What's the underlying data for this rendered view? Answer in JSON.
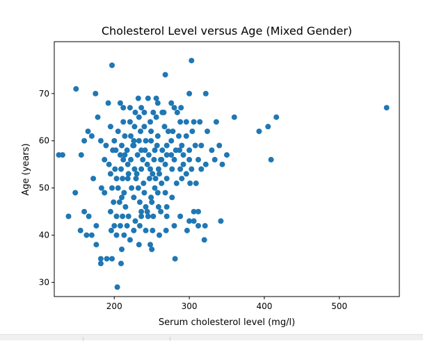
{
  "chart_data": {
    "type": "scatter",
    "title": "Cholesterol Level versus Age (Mixed Gender)",
    "xlabel": "Serum cholesterol level (mg/l)",
    "ylabel": "Age (years)",
    "xlim": [
      120,
      580
    ],
    "ylim": [
      27,
      81
    ],
    "xticks": [
      200,
      300,
      400,
      500
    ],
    "yticks": [
      30,
      40,
      50,
      60,
      70
    ],
    "grid": false,
    "marker_color": "#1f77b4",
    "series": [
      {
        "points": [
          [
            126,
            57
          ],
          [
            131,
            57
          ],
          [
            149,
            71
          ],
          [
            197,
            76
          ],
          [
            303,
            77
          ],
          [
            268,
            74
          ],
          [
            175,
            70
          ],
          [
            245,
            69
          ],
          [
            256,
            69
          ],
          [
            300,
            70
          ],
          [
            322,
            70
          ],
          [
            192,
            68
          ],
          [
            208,
            68
          ],
          [
            212,
            67
          ],
          [
            221,
            67
          ],
          [
            228,
            66
          ],
          [
            236,
            67
          ],
          [
            252,
            66
          ],
          [
            258,
            68
          ],
          [
            276,
            68
          ],
          [
            280,
            67
          ],
          [
            289,
            67
          ],
          [
            232,
            69
          ],
          [
            212,
            64
          ],
          [
            221,
            64
          ],
          [
            233,
            65
          ],
          [
            248,
            64
          ],
          [
            256,
            65
          ],
          [
            266,
            66
          ],
          [
            288,
            64
          ],
          [
            296,
            64
          ],
          [
            304,
            62
          ],
          [
            314,
            64
          ],
          [
            336,
            64
          ],
          [
            360,
            65
          ],
          [
            416,
            65
          ],
          [
            563,
            67
          ],
          [
            178,
            65
          ],
          [
            165,
            62
          ],
          [
            170,
            61
          ],
          [
            195,
            63
          ],
          [
            205,
            62
          ],
          [
            214,
            61
          ],
          [
            227,
            63
          ],
          [
            235,
            62
          ],
          [
            240,
            63
          ],
          [
            249,
            62
          ],
          [
            258,
            61
          ],
          [
            267,
            63
          ],
          [
            278,
            62
          ],
          [
            286,
            61
          ],
          [
            296,
            61
          ],
          [
            324,
            62
          ],
          [
            393,
            62
          ],
          [
            405,
            63
          ],
          [
            160,
            60
          ],
          [
            182,
            60
          ],
          [
            189,
            59
          ],
          [
            200,
            60
          ],
          [
            210,
            59
          ],
          [
            217,
            58
          ],
          [
            226,
            59
          ],
          [
            233,
            60
          ],
          [
            241,
            58
          ],
          [
            249,
            60
          ],
          [
            257,
            59
          ],
          [
            264,
            58
          ],
          [
            276,
            60
          ],
          [
            282,
            58
          ],
          [
            290,
            59
          ],
          [
            300,
            58
          ],
          [
            308,
            59
          ],
          [
            316,
            59
          ],
          [
            330,
            58
          ],
          [
            340,
            59
          ],
          [
            350,
            57
          ],
          [
            198,
            58
          ],
          [
            208,
            57
          ],
          [
            214,
            57
          ],
          [
            222,
            56
          ],
          [
            231,
            57
          ],
          [
            238,
            56
          ],
          [
            246,
            57
          ],
          [
            253,
            56
          ],
          [
            262,
            56
          ],
          [
            270,
            57
          ],
          [
            280,
            56
          ],
          [
            292,
            57
          ],
          [
            300,
            56
          ],
          [
            312,
            56
          ],
          [
            322,
            55
          ],
          [
            334,
            56
          ],
          [
            344,
            55
          ],
          [
            409,
            56
          ],
          [
            156,
            57
          ],
          [
            187,
            56
          ],
          [
            193,
            55
          ],
          [
            201,
            54
          ],
          [
            209,
            54
          ],
          [
            218,
            55
          ],
          [
            227,
            54
          ],
          [
            236,
            54
          ],
          [
            244,
            55
          ],
          [
            251,
            53
          ],
          [
            259,
            54
          ],
          [
            268,
            55
          ],
          [
            277,
            54
          ],
          [
            288,
            54
          ],
          [
            296,
            53
          ],
          [
            303,
            54
          ],
          [
            316,
            54
          ],
          [
            195,
            53
          ],
          [
            203,
            52
          ],
          [
            211,
            52
          ],
          [
            219,
            53
          ],
          [
            229,
            52
          ],
          [
            239,
            51
          ],
          [
            247,
            52
          ],
          [
            255,
            52
          ],
          [
            263,
            51
          ],
          [
            270,
            52
          ],
          [
            283,
            51
          ],
          [
            290,
            52
          ],
          [
            301,
            51
          ],
          [
            309,
            51
          ],
          [
            172,
            52
          ],
          [
            183,
            50
          ],
          [
            197,
            50
          ],
          [
            205,
            50
          ],
          [
            213,
            49
          ],
          [
            223,
            50
          ],
          [
            232,
            50
          ],
          [
            240,
            49
          ],
          [
            249,
            48
          ],
          [
            258,
            49
          ],
          [
            268,
            49
          ],
          [
            277,
            48
          ],
          [
            148,
            49
          ],
          [
            187,
            49
          ],
          [
            199,
            47
          ],
          [
            207,
            47
          ],
          [
            215,
            46
          ],
          [
            226,
            48
          ],
          [
            234,
            47
          ],
          [
            242,
            46
          ],
          [
            250,
            47
          ],
          [
            259,
            46
          ],
          [
            270,
            46
          ],
          [
            195,
            45
          ],
          [
            203,
            44
          ],
          [
            211,
            44
          ],
          [
            219,
            44
          ],
          [
            228,
            43
          ],
          [
            236,
            44
          ],
          [
            244,
            45
          ],
          [
            252,
            44
          ],
          [
            262,
            45
          ],
          [
            270,
            44
          ],
          [
            288,
            44
          ],
          [
            306,
            45
          ],
          [
            312,
            45
          ],
          [
            139,
            44
          ],
          [
            160,
            45
          ],
          [
            166,
            44
          ],
          [
            200,
            42
          ],
          [
            208,
            42
          ],
          [
            217,
            42
          ],
          [
            226,
            41
          ],
          [
            234,
            42
          ],
          [
            242,
            41
          ],
          [
            251,
            41
          ],
          [
            260,
            40
          ],
          [
            269,
            41
          ],
          [
            280,
            42
          ],
          [
            297,
            41
          ],
          [
            300,
            43
          ],
          [
            306,
            43
          ],
          [
            312,
            42
          ],
          [
            321,
            42
          ],
          [
            342,
            43
          ],
          [
            155,
            41
          ],
          [
            163,
            40
          ],
          [
            170,
            40
          ],
          [
            176,
            42
          ],
          [
            196,
            41
          ],
          [
            203,
            40
          ],
          [
            213,
            40
          ],
          [
            221,
            39
          ],
          [
            233,
            38
          ],
          [
            248,
            38
          ],
          [
            176,
            38
          ],
          [
            210,
            37
          ],
          [
            250,
            37
          ],
          [
            320,
            39
          ],
          [
            182,
            35
          ],
          [
            182,
            34
          ],
          [
            190,
            35
          ],
          [
            197,
            35
          ],
          [
            209,
            34
          ],
          [
            281,
            35
          ],
          [
            204,
            29
          ],
          [
            225,
            59
          ],
          [
            236,
            58
          ],
          [
            254,
            58
          ],
          [
            212,
            56
          ],
          [
            248,
            54
          ],
          [
            270,
            59
          ],
          [
            292,
            55
          ],
          [
            230,
            53
          ],
          [
            260,
            53
          ],
          [
            242,
            60
          ],
          [
            222,
            61
          ],
          [
            240,
            66
          ],
          [
            218,
            52
          ],
          [
            210,
            48
          ],
          [
            236,
            45
          ],
          [
            254,
            50
          ],
          [
            287,
            58
          ],
          [
            306,
            64
          ],
          [
            245,
            44
          ],
          [
            263,
            56
          ],
          [
            276,
            57
          ],
          [
            226,
            60
          ],
          [
            202,
            58
          ],
          [
            264,
            66
          ],
          [
            284,
            66
          ],
          [
            272,
            62
          ]
        ]
      }
    ]
  }
}
